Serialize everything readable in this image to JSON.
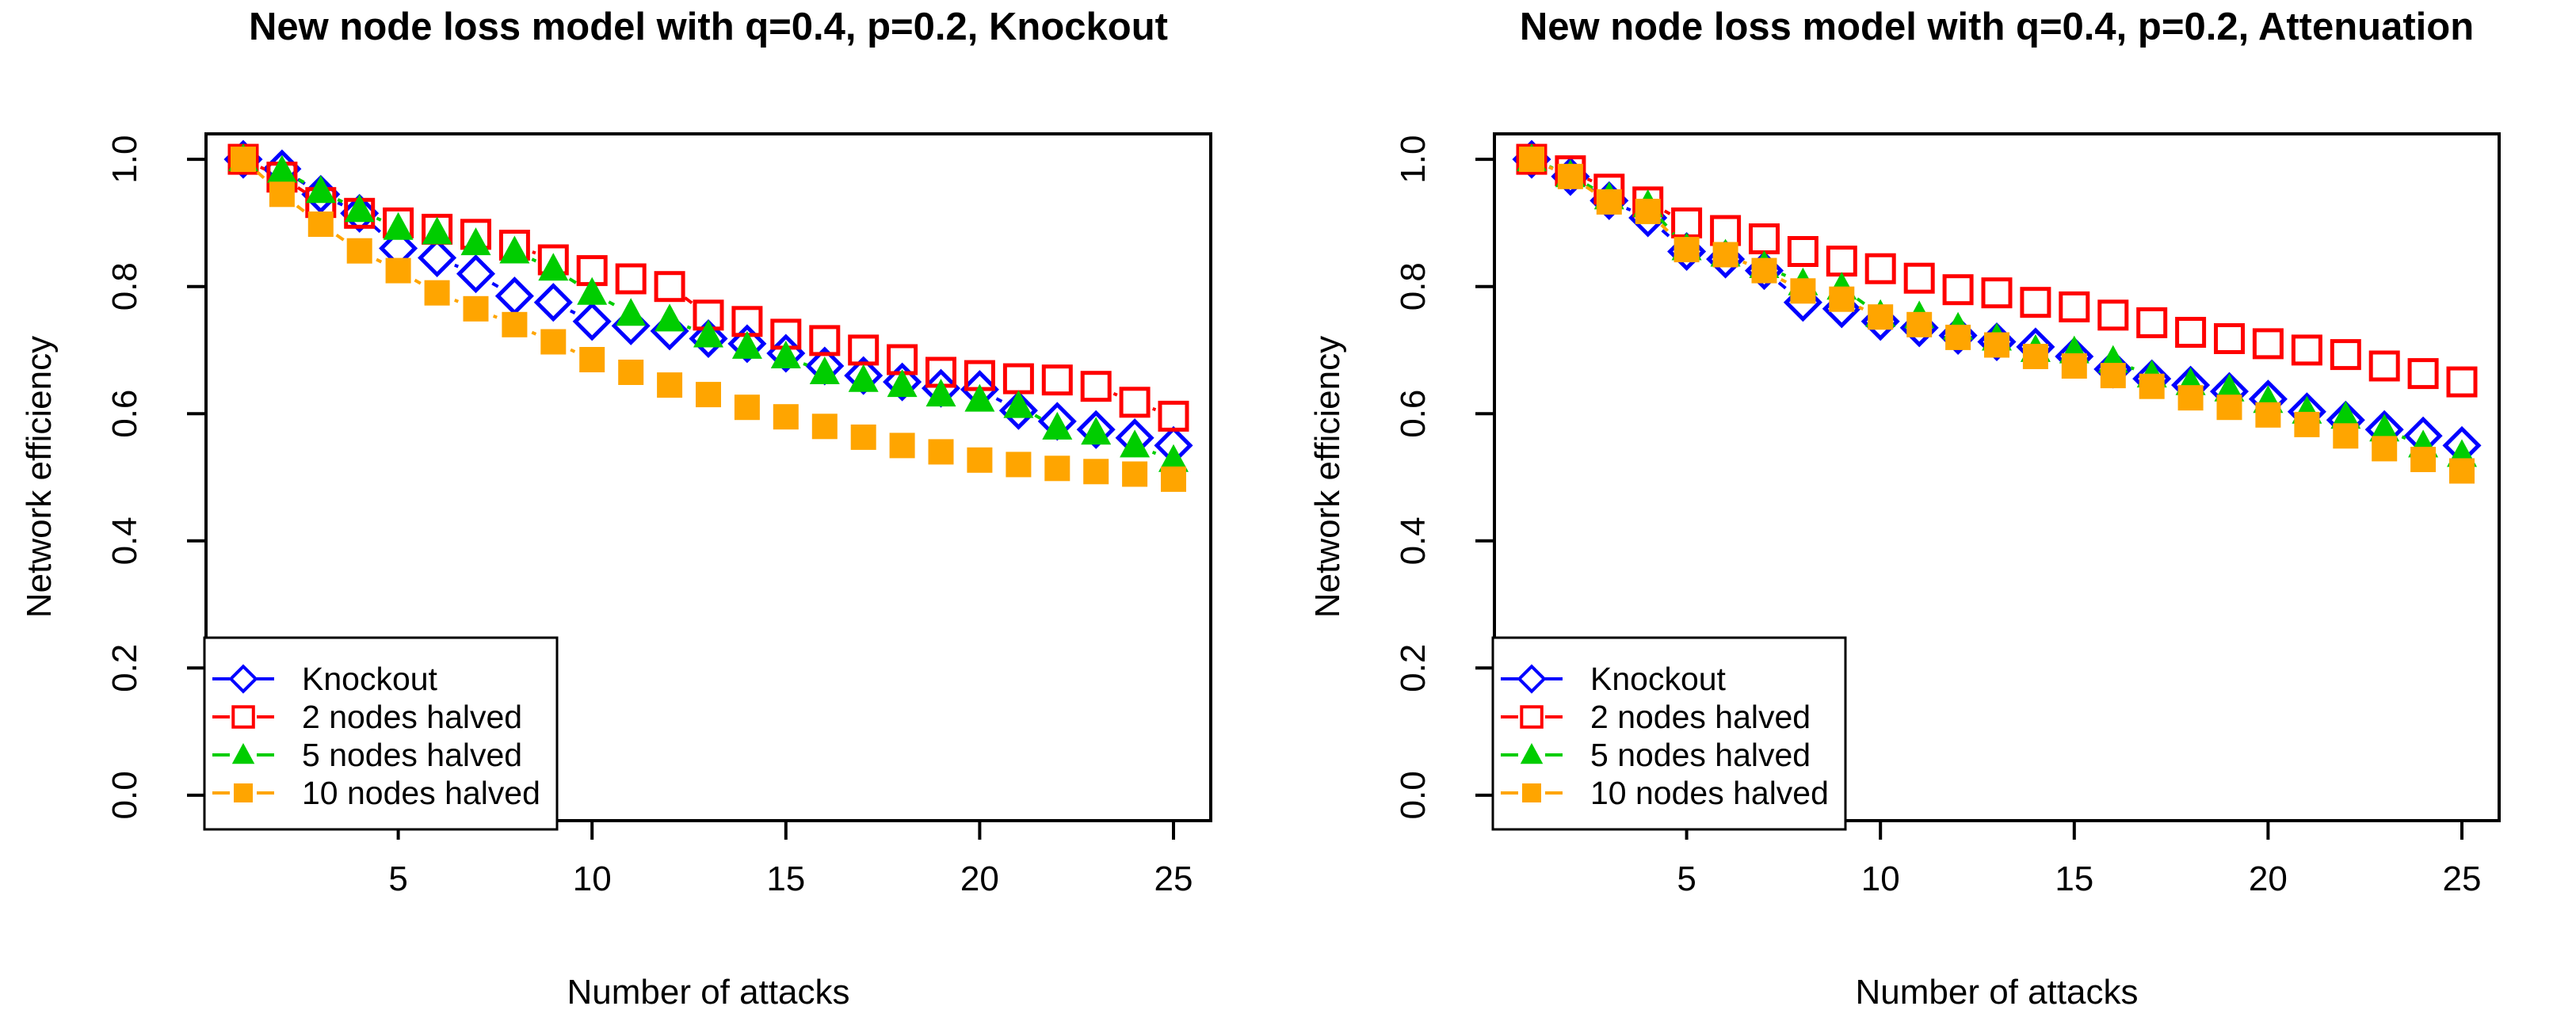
{
  "figure": {
    "background": "#ffffff",
    "axis_color": "#000000",
    "text_color": "#000000"
  },
  "chart_data": [
    {
      "type": "scatter",
      "title": "New node loss model with q=0.4, p=0.2, Knockout",
      "xlabel": "Number of attacks",
      "ylabel": "Network efficiency",
      "x": [
        1,
        2,
        3,
        4,
        5,
        6,
        7,
        8,
        9,
        10,
        11,
        12,
        13,
        14,
        15,
        16,
        17,
        18,
        19,
        20,
        21,
        22,
        23,
        24,
        25
      ],
      "xlim": [
        1,
        25
      ],
      "ylim": [
        0,
        1
      ],
      "x_ticks": [
        5,
        10,
        15,
        20,
        25
      ],
      "y_ticks": [
        "0.0",
        "0.2",
        "0.4",
        "0.6",
        "0.8",
        "1.0"
      ],
      "grid": false,
      "legend_position": "bottom-left",
      "series": [
        {
          "name": "Knockout",
          "color": "#0000FF",
          "marker": "diamond-open",
          "linestyle": "dashed",
          "values": [
            1.0,
            0.985,
            0.945,
            0.915,
            0.86,
            0.845,
            0.82,
            0.785,
            0.775,
            0.745,
            0.738,
            0.73,
            0.718,
            0.71,
            0.695,
            0.675,
            0.66,
            0.65,
            0.64,
            0.638,
            0.605,
            0.588,
            0.575,
            0.562,
            0.55
          ]
        },
        {
          "name": "2 nodes halved",
          "color": "#FF0000",
          "marker": "square-open",
          "linestyle": "dashed",
          "values": [
            1.0,
            0.972,
            0.932,
            0.915,
            0.9,
            0.89,
            0.882,
            0.865,
            0.842,
            0.825,
            0.812,
            0.8,
            0.755,
            0.745,
            0.725,
            0.715,
            0.7,
            0.685,
            0.665,
            0.66,
            0.655,
            0.653,
            0.643,
            0.618,
            0.596
          ]
        },
        {
          "name": "5 nodes halved",
          "color": "#00CD00",
          "marker": "triangle-filled",
          "linestyle": "dashed",
          "values": [
            1.0,
            0.982,
            0.95,
            0.92,
            0.892,
            0.885,
            0.868,
            0.855,
            0.828,
            0.79,
            0.757,
            0.748,
            0.723,
            0.705,
            0.69,
            0.665,
            0.653,
            0.645,
            0.63,
            0.622,
            0.612,
            0.578,
            0.57,
            0.55,
            0.527
          ]
        },
        {
          "name": "10 nodes halved",
          "color": "#FFA500",
          "marker": "square-filled",
          "linestyle": "dashed",
          "values": [
            1.0,
            0.945,
            0.898,
            0.856,
            0.825,
            0.79,
            0.765,
            0.74,
            0.713,
            0.685,
            0.665,
            0.645,
            0.63,
            0.61,
            0.595,
            0.58,
            0.563,
            0.55,
            0.54,
            0.527,
            0.52,
            0.514,
            0.509,
            0.505,
            0.497
          ]
        }
      ]
    },
    {
      "type": "scatter",
      "title": "New node loss model with q=0.4, p=0.2, Attenuation",
      "xlabel": "Number of attacks",
      "ylabel": "Network efficiency",
      "x": [
        1,
        2,
        3,
        4,
        5,
        6,
        7,
        8,
        9,
        10,
        11,
        12,
        13,
        14,
        15,
        16,
        17,
        18,
        19,
        20,
        21,
        22,
        23,
        24,
        25
      ],
      "xlim": [
        1,
        25
      ],
      "ylim": [
        0,
        1
      ],
      "x_ticks": [
        5,
        10,
        15,
        20,
        25
      ],
      "y_ticks": [
        "0.0",
        "0.2",
        "0.4",
        "0.6",
        "0.8",
        "1.0"
      ],
      "grid": false,
      "legend_position": "bottom-left",
      "series": [
        {
          "name": "Knockout",
          "color": "#0000FF",
          "marker": "diamond-open",
          "linestyle": "dashed",
          "values": [
            1.0,
            0.973,
            0.935,
            0.908,
            0.855,
            0.843,
            0.825,
            0.775,
            0.765,
            0.745,
            0.735,
            0.723,
            0.713,
            0.705,
            0.69,
            0.67,
            0.655,
            0.645,
            0.635,
            0.623,
            0.603,
            0.59,
            0.575,
            0.565,
            0.55
          ]
        },
        {
          "name": "2 nodes halved",
          "color": "#FF0000",
          "marker": "square-open",
          "linestyle": "dashed",
          "values": [
            1.0,
            0.982,
            0.953,
            0.933,
            0.9,
            0.888,
            0.875,
            0.855,
            0.84,
            0.828,
            0.813,
            0.795,
            0.79,
            0.775,
            0.768,
            0.755,
            0.743,
            0.728,
            0.718,
            0.71,
            0.7,
            0.693,
            0.675,
            0.663,
            0.65
          ]
        },
        {
          "name": "5 nodes halved",
          "color": "#00CD00",
          "marker": "triangle-filled",
          "linestyle": "dashed",
          "values": [
            1.0,
            0.975,
            0.94,
            0.928,
            0.86,
            0.85,
            0.832,
            0.805,
            0.798,
            0.755,
            0.753,
            0.735,
            0.718,
            0.7,
            0.698,
            0.683,
            0.66,
            0.648,
            0.638,
            0.62,
            0.603,
            0.595,
            0.575,
            0.55,
            0.535
          ]
        },
        {
          "name": "10 nodes halved",
          "color": "#FFA500",
          "marker": "square-filled",
          "linestyle": "dashed",
          "values": [
            1.0,
            0.973,
            0.933,
            0.918,
            0.858,
            0.85,
            0.825,
            0.793,
            0.78,
            0.752,
            0.74,
            0.72,
            0.708,
            0.69,
            0.675,
            0.66,
            0.643,
            0.625,
            0.61,
            0.598,
            0.583,
            0.565,
            0.545,
            0.528,
            0.51
          ]
        }
      ]
    }
  ]
}
